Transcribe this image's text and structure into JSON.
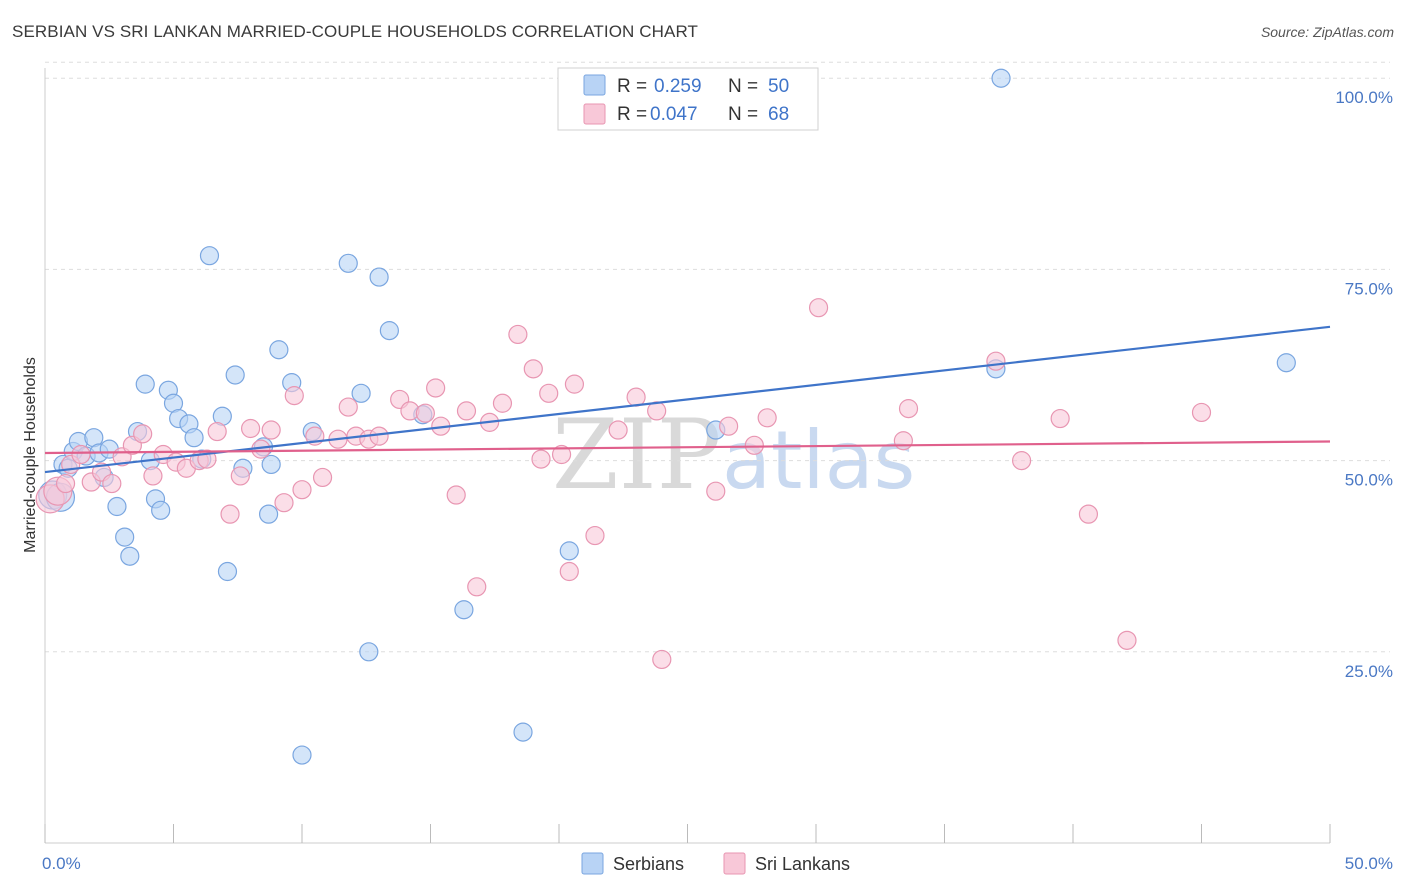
{
  "title": "SERBIAN VS SRI LANKAN MARRIED-COUPLE HOUSEHOLDS CORRELATION CHART",
  "source": "Source: ZipAtlas.com",
  "watermark": {
    "zip": "ZIP",
    "atlas": "atlas"
  },
  "legend": {
    "r_label": "R =",
    "n_label": "N =",
    "rows": [
      {
        "r": "0.259",
        "n": "50",
        "fill": "#b8d3f5",
        "stroke": "#7aa6e0"
      },
      {
        "r": "0.047",
        "n": "68",
        "fill": "#f8c8d8",
        "stroke": "#e896b2"
      }
    ]
  },
  "bottom_legend": [
    {
      "label": "Serbians",
      "fill": "#b8d3f5",
      "stroke": "#7aa6e0"
    },
    {
      "label": "Sri Lankans",
      "fill": "#f8c8d8",
      "stroke": "#e896b2"
    }
  ],
  "chart_data": {
    "type": "scatter",
    "title": "SERBIAN VS SRI LANKAN MARRIED-COUPLE HOUSEHOLDS CORRELATION CHART",
    "xlabel": "",
    "ylabel": "Married-couple Households",
    "xlim": [
      0,
      50
    ],
    "ylim": [
      0,
      105
    ],
    "x_tick_labels": [
      "0.0%",
      "50.0%"
    ],
    "y_ticks": [
      25,
      50,
      75,
      100
    ],
    "y_tick_labels": [
      "25.0%",
      "50.0%",
      "75.0%",
      "100.0%"
    ],
    "grid": true,
    "series": [
      {
        "name": "Serbians",
        "color": "#3f74c9",
        "point_fill": "#b8d3f5",
        "point_stroke": "#7aa6e0",
        "trend": [
          [
            0,
            48.5
          ],
          [
            50,
            67.5
          ]
        ],
        "points": [
          [
            0.3,
            45.5
          ],
          [
            0.6,
            45.2
          ],
          [
            0.7,
            49.5
          ],
          [
            0.9,
            49.0
          ],
          [
            1.1,
            51.2
          ],
          [
            1.3,
            52.5
          ],
          [
            1.6,
            50.6
          ],
          [
            1.9,
            53.0
          ],
          [
            2.1,
            51.0
          ],
          [
            2.3,
            47.8
          ],
          [
            2.5,
            51.5
          ],
          [
            2.8,
            44.0
          ],
          [
            3.1,
            40.0
          ],
          [
            3.3,
            37.5
          ],
          [
            3.6,
            53.8
          ],
          [
            3.9,
            60.0
          ],
          [
            4.1,
            50.0
          ],
          [
            4.3,
            45.0
          ],
          [
            4.5,
            43.5
          ],
          [
            4.8,
            59.2
          ],
          [
            5.0,
            57.5
          ],
          [
            5.2,
            55.5
          ],
          [
            5.6,
            54.8
          ],
          [
            5.8,
            53.0
          ],
          [
            6.1,
            50.2
          ],
          [
            6.4,
            76.8
          ],
          [
            6.9,
            55.8
          ],
          [
            7.1,
            35.5
          ],
          [
            7.4,
            61.2
          ],
          [
            7.7,
            49.0
          ],
          [
            8.5,
            51.8
          ],
          [
            8.7,
            43.0
          ],
          [
            8.8,
            49.5
          ],
          [
            9.1,
            64.5
          ],
          [
            9.6,
            60.2
          ],
          [
            10.4,
            53.8
          ],
          [
            11.8,
            75.8
          ],
          [
            12.3,
            58.8
          ],
          [
            12.6,
            25.0
          ],
          [
            13.0,
            74.0
          ],
          [
            13.4,
            67.0
          ],
          [
            14.7,
            56.0
          ],
          [
            16.3,
            30.5
          ],
          [
            18.6,
            14.5
          ],
          [
            20.4,
            38.2
          ],
          [
            26.1,
            54.0
          ],
          [
            37.0,
            62.0
          ],
          [
            37.2,
            100.0
          ],
          [
            48.3,
            62.8
          ],
          [
            10.0,
            11.5
          ]
        ]
      },
      {
        "name": "Sri Lankans",
        "color": "#e0608c",
        "point_fill": "#f8c8d8",
        "point_stroke": "#e896b2",
        "trend": [
          [
            0,
            51.0
          ],
          [
            50,
            52.5
          ]
        ],
        "points": [
          [
            0.2,
            45.0
          ],
          [
            0.5,
            46.0
          ],
          [
            0.8,
            47.0
          ],
          [
            1.0,
            49.5
          ],
          [
            1.4,
            50.8
          ],
          [
            1.8,
            47.2
          ],
          [
            2.2,
            48.5
          ],
          [
            2.6,
            47.0
          ],
          [
            3.0,
            50.5
          ],
          [
            3.4,
            52.0
          ],
          [
            3.8,
            53.5
          ],
          [
            4.2,
            48.0
          ],
          [
            4.6,
            50.8
          ],
          [
            5.1,
            49.8
          ],
          [
            5.5,
            49.0
          ],
          [
            6.0,
            50.0
          ],
          [
            6.3,
            50.2
          ],
          [
            6.7,
            53.8
          ],
          [
            7.2,
            43.0
          ],
          [
            7.6,
            48.0
          ],
          [
            8.0,
            54.2
          ],
          [
            8.4,
            51.5
          ],
          [
            8.8,
            54.0
          ],
          [
            9.3,
            44.5
          ],
          [
            9.7,
            58.5
          ],
          [
            10.0,
            46.2
          ],
          [
            10.5,
            53.2
          ],
          [
            10.8,
            47.8
          ],
          [
            11.4,
            52.8
          ],
          [
            11.8,
            57.0
          ],
          [
            12.1,
            53.2
          ],
          [
            12.6,
            52.8
          ],
          [
            13.0,
            53.2
          ],
          [
            13.8,
            58.0
          ],
          [
            14.2,
            56.5
          ],
          [
            14.8,
            56.2
          ],
          [
            15.2,
            59.5
          ],
          [
            15.4,
            54.5
          ],
          [
            16.0,
            45.5
          ],
          [
            16.4,
            56.5
          ],
          [
            16.8,
            33.5
          ],
          [
            17.3,
            55.0
          ],
          [
            17.8,
            57.5
          ],
          [
            18.4,
            66.5
          ],
          [
            19.0,
            62.0
          ],
          [
            19.3,
            50.2
          ],
          [
            19.6,
            58.8
          ],
          [
            20.1,
            50.8
          ],
          [
            20.4,
            35.5
          ],
          [
            20.6,
            60.0
          ],
          [
            21.4,
            40.2
          ],
          [
            22.3,
            54.0
          ],
          [
            23.0,
            58.3
          ],
          [
            23.8,
            56.5
          ],
          [
            24.0,
            24.0
          ],
          [
            26.1,
            46.0
          ],
          [
            26.6,
            54.5
          ],
          [
            27.6,
            52.0
          ],
          [
            28.1,
            55.6
          ],
          [
            30.1,
            70.0
          ],
          [
            33.4,
            52.6
          ],
          [
            33.6,
            56.8
          ],
          [
            37.0,
            63.0
          ],
          [
            38.0,
            50.0
          ],
          [
            39.5,
            55.5
          ],
          [
            40.6,
            43.0
          ],
          [
            42.1,
            26.5
          ],
          [
            45.0,
            56.3
          ]
        ]
      }
    ]
  }
}
